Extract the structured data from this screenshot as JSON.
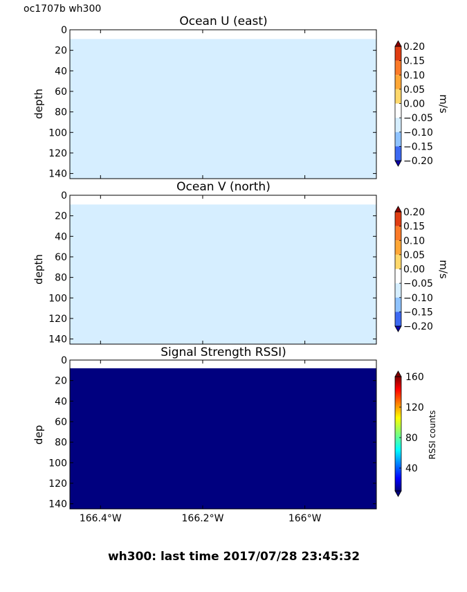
{
  "corner_label": "oc1707b wh300",
  "footer_text": "wh300: last time 2017/07/28 23:45:32",
  "colors": {
    "fill_velocity": "#d6eeff",
    "fill_rssi": "#00007f"
  },
  "chart_data": [
    {
      "type": "heatmap",
      "title": "Ocean U (east)",
      "ylabel": "depth",
      "ylim": [
        145,
        0
      ],
      "yticks": [
        "0",
        "20",
        "40",
        "60",
        "80",
        "100",
        "120",
        "140"
      ],
      "xlim": [
        -166.46,
        -165.86
      ],
      "xticks_positions": [
        -166.4,
        -166.2,
        -166.0
      ],
      "xtick_labels": [],
      "data_depth_range": [
        9,
        145
      ],
      "value": 0.0,
      "colorbar": {
        "label": "m/s",
        "tick_labels": [
          "0.20",
          "0.15",
          "0.10",
          "0.05",
          "0.00",
          "−0.05",
          "−0.10",
          "−0.15",
          "−0.20"
        ],
        "levels": [
          0.2,
          0.15,
          0.1,
          0.05,
          0.0,
          -0.05,
          -0.1,
          -0.15,
          -0.2
        ],
        "colors": [
          "#e03d12",
          "#fb7a28",
          "#ffa736",
          "#ffd86b",
          "#ffffff",
          "#d6eeff",
          "#8fc3ff",
          "#3c69f2",
          "#2410d4"
        ],
        "extend": "both"
      }
    },
    {
      "type": "heatmap",
      "title": "Ocean V (north)",
      "ylabel": "depth",
      "ylim": [
        145,
        0
      ],
      "yticks": [
        "0",
        "20",
        "40",
        "60",
        "80",
        "100",
        "120",
        "140"
      ],
      "xlim": [
        -166.46,
        -165.86
      ],
      "xticks_positions": [
        -166.4,
        -166.2,
        -166.0
      ],
      "xtick_labels": [],
      "data_depth_range": [
        9,
        145
      ],
      "value": 0.0,
      "colorbar": {
        "label": "m/s",
        "tick_labels": [
          "0.20",
          "0.15",
          "0.10",
          "0.05",
          "0.00",
          "−0.05",
          "−0.10",
          "−0.15",
          "−0.20"
        ],
        "levels": [
          0.2,
          0.15,
          0.1,
          0.05,
          0.0,
          -0.05,
          -0.1,
          -0.15,
          -0.2
        ],
        "colors": [
          "#e03d12",
          "#fb7a28",
          "#ffa736",
          "#ffd86b",
          "#ffffff",
          "#d6eeff",
          "#8fc3ff",
          "#3c69f2",
          "#2410d4"
        ],
        "extend": "both"
      }
    },
    {
      "type": "heatmap",
      "title": "Signal Strength RSSI)",
      "ylabel": "dep",
      "ylim": [
        145,
        0
      ],
      "yticks": [
        "0",
        "20",
        "40",
        "60",
        "80",
        "100",
        "120",
        "140"
      ],
      "xlim": [
        -166.46,
        -165.86
      ],
      "xticks_positions": [
        -166.4,
        -166.2,
        -166.0
      ],
      "xtick_labels": [
        "166.4°W",
        "166.2°W",
        "166°W"
      ],
      "data_depth_range": [
        8,
        145
      ],
      "value": 10,
      "colorbar": {
        "label": "RSSI counts",
        "tick_labels": [
          "160",
          "120",
          "80",
          "40"
        ],
        "tick_values": [
          160,
          120,
          80,
          40
        ],
        "range": [
          10,
          160
        ],
        "colormap": "jet",
        "extend": "both"
      }
    }
  ]
}
